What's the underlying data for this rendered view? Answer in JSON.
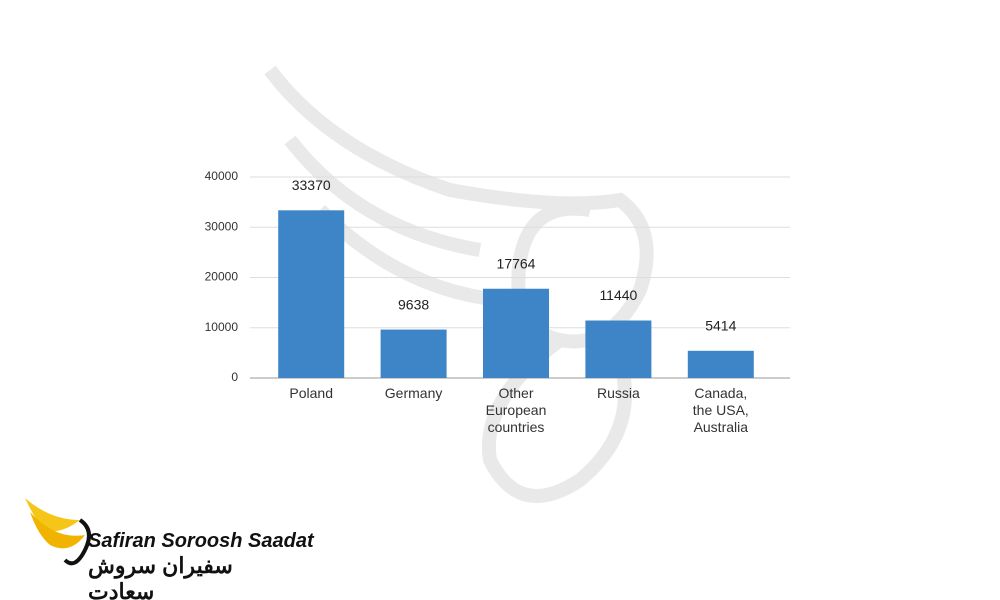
{
  "chart_data": {
    "type": "bar",
    "categories": [
      "Poland",
      "Germany",
      "Other European countries",
      "Russia",
      "Canada, the USA, Australia"
    ],
    "values": [
      33370,
      9638,
      17764,
      11440,
      5414
    ],
    "color": "#3d85c6",
    "ylim": [
      0,
      40000
    ],
    "yticks": [
      0,
      10000,
      20000,
      30000,
      40000
    ],
    "grid": true
  },
  "logo": {
    "name": "Safiran Soroosh Saadat",
    "name_fa": "سفیران سروش سعادت"
  }
}
